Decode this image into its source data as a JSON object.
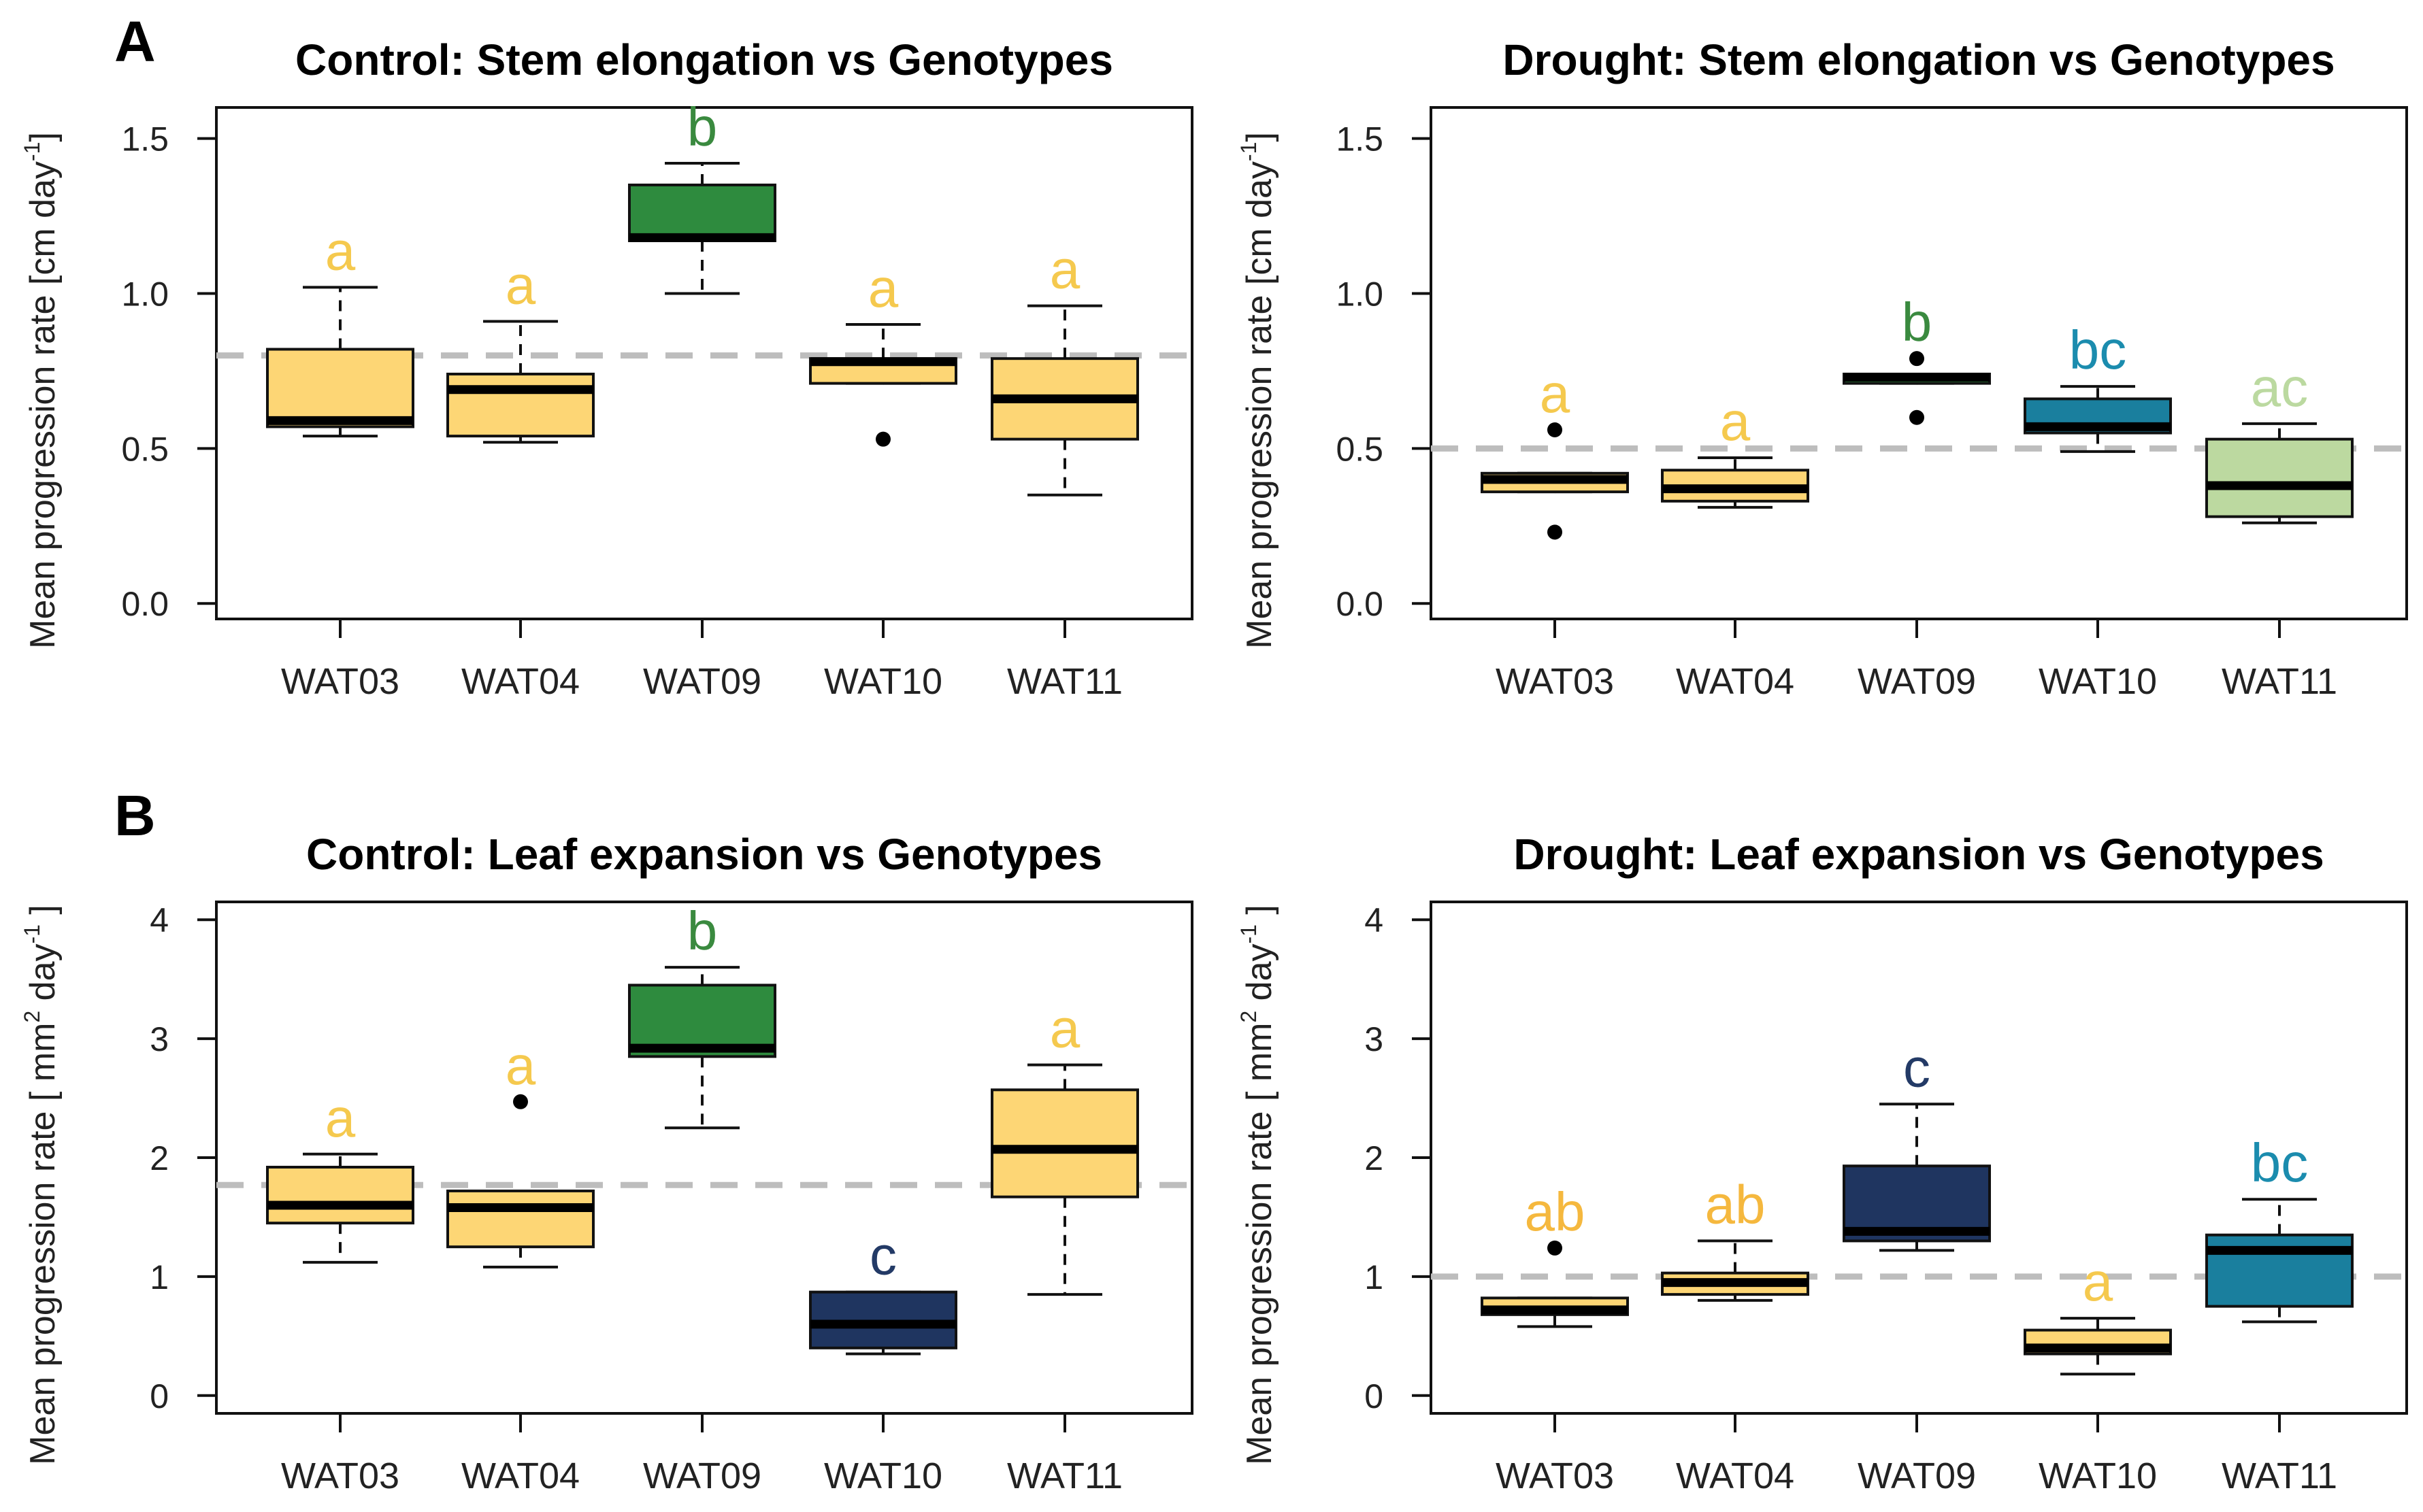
{
  "chart_data": [
    {
      "panel_label": "A",
      "type": "box",
      "title": "Control: Stem elongation vs Genotypes",
      "ylabel": "Mean progression rate [cm day",
      "ylabel_sup": "-1",
      "ylabel_end": "]",
      "ylim": [
        -0.05,
        1.6
      ],
      "yticks": [
        0.0,
        0.5,
        1.0,
        1.5
      ],
      "ytick_labels": [
        "0.0",
        "0.5",
        "1.0",
        "1.5"
      ],
      "reference_line": 0.8,
      "categories": [
        "WAT03",
        "WAT04",
        "WAT09",
        "WAT10",
        "WAT11"
      ],
      "boxes": [
        {
          "q1": 0.57,
          "median": 0.59,
          "q3": 0.82,
          "whisker_low": 0.54,
          "whisker_high": 1.02,
          "outliers": [],
          "color": "#FDD675",
          "letter": "a",
          "letter_color": "#F5C94E"
        },
        {
          "q1": 0.54,
          "median": 0.69,
          "q3": 0.74,
          "whisker_low": 0.52,
          "whisker_high": 0.91,
          "outliers": [],
          "color": "#FDD675",
          "letter": "a",
          "letter_color": "#F5C94E"
        },
        {
          "q1": 1.17,
          "median": 1.18,
          "q3": 1.35,
          "whisker_low": 1.0,
          "whisker_high": 1.42,
          "outliers": [],
          "color": "#2E8B3E",
          "letter": "b",
          "letter_color": "#3A8A3F"
        },
        {
          "q1": 0.71,
          "median": 0.78,
          "q3": 0.79,
          "whisker_low": 0.71,
          "whisker_high": 0.9,
          "outliers": [
            0.53
          ],
          "color": "#FDD675",
          "letter": "a",
          "letter_color": "#F5C94E"
        },
        {
          "q1": 0.53,
          "median": 0.66,
          "q3": 0.79,
          "whisker_low": 0.35,
          "whisker_high": 0.96,
          "outliers": [],
          "color": "#FDD675",
          "letter": "a",
          "letter_color": "#F5C94E"
        }
      ]
    },
    {
      "panel_label": "",
      "type": "box",
      "title": "Drought: Stem elongation vs Genotypes",
      "ylabel": "Mean progression rate [cm day",
      "ylabel_sup": "-1",
      "ylabel_end": "]",
      "ylim": [
        -0.05,
        1.6
      ],
      "yticks": [
        0.0,
        0.5,
        1.0,
        1.5
      ],
      "ytick_labels": [
        "0.0",
        "0.5",
        "1.0",
        "1.5"
      ],
      "reference_line": 0.5,
      "categories": [
        "WAT03",
        "WAT04",
        "WAT09",
        "WAT10",
        "WAT11"
      ],
      "boxes": [
        {
          "q1": 0.36,
          "median": 0.4,
          "q3": 0.42,
          "whisker_low": 0.36,
          "whisker_high": 0.42,
          "outliers": [
            0.56,
            0.23
          ],
          "color": "#FDD675",
          "letter": "a",
          "letter_color": "#F5C94E"
        },
        {
          "q1": 0.33,
          "median": 0.37,
          "q3": 0.43,
          "whisker_low": 0.31,
          "whisker_high": 0.47,
          "outliers": [],
          "color": "#FDD675",
          "letter": "a",
          "letter_color": "#F5C94E"
        },
        {
          "q1": 0.71,
          "median": 0.73,
          "q3": 0.74,
          "whisker_low": 0.71,
          "whisker_high": 0.74,
          "outliers": [
            0.79,
            0.6
          ],
          "color": "#2E8B3E",
          "letter": "b",
          "letter_color": "#3A8A3F"
        },
        {
          "q1": 0.55,
          "median": 0.57,
          "q3": 0.66,
          "whisker_low": 0.49,
          "whisker_high": 0.7,
          "outliers": [],
          "color": "#1A7F9E",
          "letter": "bc",
          "letter_color": "#1B8CAE"
        },
        {
          "q1": 0.28,
          "median": 0.38,
          "q3": 0.53,
          "whisker_low": 0.26,
          "whisker_high": 0.58,
          "outliers": [],
          "color": "#BCD9A0",
          "letter": "ac",
          "letter_color": "#BBD9A0"
        }
      ]
    },
    {
      "panel_label": "B",
      "type": "box",
      "title": "Control: Leaf expansion vs Genotypes",
      "ylabel": "Mean progression rate [ mm",
      "ylabel_sup2": "2",
      "ylabel_mid": " day",
      "ylabel_sup": "-1",
      "ylabel_end": " ]",
      "ylim": [
        -0.15,
        4.15
      ],
      "yticks": [
        0,
        1,
        2,
        3,
        4
      ],
      "ytick_labels": [
        "0",
        "1",
        "2",
        "3",
        "4"
      ],
      "reference_line": 1.77,
      "categories": [
        "WAT03",
        "WAT04",
        "WAT09",
        "WAT10",
        "WAT11"
      ],
      "boxes": [
        {
          "q1": 1.45,
          "median": 1.6,
          "q3": 1.92,
          "whisker_low": 1.12,
          "whisker_high": 2.03,
          "outliers": [],
          "color": "#FDD675",
          "letter": "a",
          "letter_color": "#F5C94E"
        },
        {
          "q1": 1.25,
          "median": 1.58,
          "q3": 1.72,
          "whisker_low": 1.08,
          "whisker_high": 1.72,
          "outliers": [
            2.47
          ],
          "color": "#FDD675",
          "letter": "a",
          "letter_color": "#F5C94E"
        },
        {
          "q1": 2.85,
          "median": 2.92,
          "q3": 3.45,
          "whisker_low": 2.25,
          "whisker_high": 3.6,
          "outliers": [],
          "color": "#2E8B3E",
          "letter": "b",
          "letter_color": "#3A8A3F"
        },
        {
          "q1": 0.4,
          "median": 0.6,
          "q3": 0.87,
          "whisker_low": 0.35,
          "whisker_high": 0.87,
          "outliers": [],
          "color": "#1F3560",
          "letter": "c",
          "letter_color": "#233A66"
        },
        {
          "q1": 1.67,
          "median": 2.07,
          "q3": 2.57,
          "whisker_low": 0.85,
          "whisker_high": 2.78,
          "outliers": [],
          "color": "#FDD675",
          "letter": "a",
          "letter_color": "#F5C94E"
        }
      ]
    },
    {
      "panel_label": "",
      "type": "box",
      "title": "Drought: Leaf expansion vs Genotypes",
      "ylabel": "Mean progression rate [ mm",
      "ylabel_sup2": "2",
      "ylabel_mid": " day",
      "ylabel_sup": "-1",
      "ylabel_end": " ]",
      "ylim": [
        -0.15,
        4.15
      ],
      "yticks": [
        0,
        1,
        2,
        3,
        4
      ],
      "ytick_labels": [
        "0",
        "1",
        "2",
        "3",
        "4"
      ],
      "reference_line": 1.0,
      "categories": [
        "WAT03",
        "WAT04",
        "WAT09",
        "WAT10",
        "WAT11"
      ],
      "boxes": [
        {
          "q1": 0.68,
          "median": 0.72,
          "q3": 0.82,
          "whisker_low": 0.58,
          "whisker_high": 0.82,
          "outliers": [
            1.24
          ],
          "color": "#FDD675",
          "letter": "ab",
          "letter_color": "#F5B83E"
        },
        {
          "q1": 0.85,
          "median": 0.95,
          "q3": 1.03,
          "whisker_low": 0.8,
          "whisker_high": 1.3,
          "outliers": [],
          "color": "#FDD675",
          "letter": "ab",
          "letter_color": "#F5B83E"
        },
        {
          "q1": 1.3,
          "median": 1.38,
          "q3": 1.93,
          "whisker_low": 1.22,
          "whisker_high": 2.45,
          "outliers": [],
          "color": "#1F3560",
          "letter": "c",
          "letter_color": "#233A66"
        },
        {
          "q1": 0.35,
          "median": 0.4,
          "q3": 0.55,
          "whisker_low": 0.18,
          "whisker_high": 0.65,
          "outliers": [],
          "color": "#FDD675",
          "letter": "a",
          "letter_color": "#F5C94E"
        },
        {
          "q1": 0.75,
          "median": 1.22,
          "q3": 1.35,
          "whisker_low": 0.62,
          "whisker_high": 1.65,
          "outliers": [],
          "color": "#1A7F9E",
          "letter": "bc",
          "letter_color": "#1B8CAE"
        }
      ]
    }
  ]
}
